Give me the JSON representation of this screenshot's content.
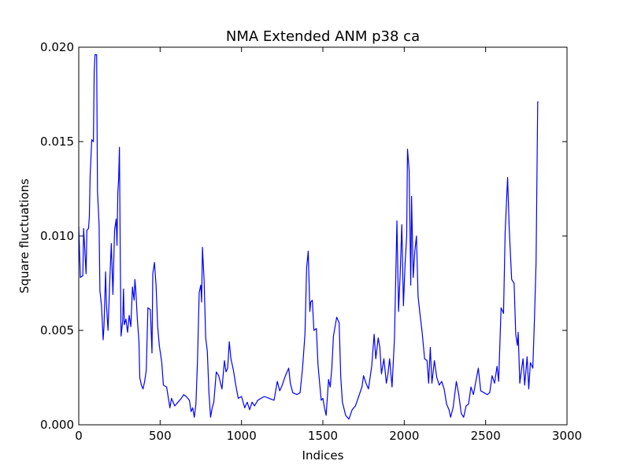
{
  "chart_data": {
    "type": "line",
    "title": "NMA Extended ANM p38 ca",
    "xlabel": "Indices",
    "ylabel": "Square fluctuations",
    "xlim": [
      0,
      3000
    ],
    "xticks": [
      0,
      500,
      1000,
      1500,
      2000,
      2500,
      3000
    ],
    "ylim": [
      0,
      0.02
    ],
    "yticks": [
      {
        "value": 0,
        "label": "0.000"
      },
      {
        "value": 0.005,
        "label": "0.005"
      },
      {
        "value": 0.01,
        "label": "0.010"
      },
      {
        "value": 0.015,
        "label": "0.015"
      },
      {
        "value": 0.02,
        "label": "0.020"
      }
    ],
    "grid": false,
    "x": [
      0,
      10,
      25,
      30,
      45,
      50,
      60,
      65,
      70,
      80,
      90,
      95,
      100,
      110,
      115,
      125,
      130,
      140,
      150,
      155,
      165,
      170,
      180,
      190,
      200,
      210,
      220,
      230,
      235,
      240,
      245,
      250,
      255,
      260,
      270,
      275,
      280,
      290,
      300,
      310,
      320,
      330,
      340,
      345,
      350,
      360,
      370,
      375,
      385,
      395,
      405,
      415,
      425,
      440,
      450,
      455,
      465,
      475,
      485,
      495,
      510,
      520,
      540,
      560,
      570,
      590,
      610,
      630,
      645,
      660,
      680,
      690,
      700,
      710,
      720,
      730,
      740,
      750,
      755,
      760,
      770,
      780,
      790,
      800,
      810,
      820,
      830,
      845,
      860,
      880,
      895,
      905,
      915,
      925,
      935,
      950,
      965,
      980,
      1000,
      1020,
      1035,
      1050,
      1065,
      1080,
      1100,
      1120,
      1140,
      1170,
      1200,
      1220,
      1235,
      1250,
      1270,
      1290,
      1300,
      1315,
      1340,
      1360,
      1375,
      1390,
      1400,
      1410,
      1420,
      1425,
      1435,
      1445,
      1460,
      1470,
      1480,
      1490,
      1500,
      1510,
      1520,
      1535,
      1545,
      1555,
      1565,
      1575,
      1585,
      1600,
      1610,
      1620,
      1640,
      1660,
      1680,
      1700,
      1720,
      1740,
      1750,
      1765,
      1780,
      1800,
      1815,
      1825,
      1840,
      1850,
      1860,
      1875,
      1890,
      1900,
      1910,
      1925,
      1940,
      1955,
      1965,
      1975,
      1985,
      1995,
      2005,
      2015,
      2020,
      2030,
      2040,
      2045,
      2055,
      2065,
      2075,
      2085,
      2095,
      2110,
      2125,
      2140,
      2150,
      2160,
      2170,
      2185,
      2200,
      2215,
      2230,
      2245,
      2260,
      2275,
      2285,
      2300,
      2310,
      2320,
      2335,
      2350,
      2365,
      2380,
      2395,
      2410,
      2425,
      2440,
      2455,
      2470,
      2490,
      2510,
      2525,
      2540,
      2555,
      2570,
      2580,
      2595,
      2610,
      2620,
      2635,
      2645,
      2660,
      2675,
      2685,
      2695,
      2700,
      2710,
      2720,
      2730,
      2740,
      2755,
      2765,
      2775,
      2790,
      2800,
      2810,
      2820,
      2825
    ],
    "series": [
      {
        "color": "#0000ff",
        "values": [
          0.0105,
          0.0078,
          0.0079,
          0.0104,
          0.008,
          0.0103,
          0.0104,
          0.011,
          0.0132,
          0.0151,
          0.015,
          0.0187,
          0.0196,
          0.0196,
          0.0124,
          0.0106,
          0.0071,
          0.0063,
          0.0045,
          0.0052,
          0.0081,
          0.0064,
          0.005,
          0.0075,
          0.0096,
          0.0069,
          0.0103,
          0.0109,
          0.0095,
          0.0123,
          0.013,
          0.0147,
          0.009,
          0.0047,
          0.0055,
          0.0072,
          0.0053,
          0.0056,
          0.0049,
          0.0058,
          0.0052,
          0.0073,
          0.0066,
          0.0077,
          0.0072,
          0.0056,
          0.0044,
          0.0025,
          0.0021,
          0.0019,
          0.0023,
          0.0029,
          0.0062,
          0.0061,
          0.0038,
          0.008,
          0.0086,
          0.0074,
          0.0052,
          0.0042,
          0.0033,
          0.0021,
          0.002,
          0.0009,
          0.0014,
          0.001,
          0.0012,
          0.0014,
          0.0016,
          0.0015,
          0.0013,
          0.0007,
          0.0009,
          0.0004,
          0.0011,
          0.0035,
          0.007,
          0.0074,
          0.0065,
          0.0094,
          0.0077,
          0.0046,
          0.0039,
          0.0017,
          0.0004,
          0.0009,
          0.0012,
          0.0028,
          0.0026,
          0.0019,
          0.0034,
          0.0028,
          0.003,
          0.0044,
          0.0035,
          0.0029,
          0.0021,
          0.0014,
          0.0015,
          0.0009,
          0.0012,
          0.0008,
          0.0012,
          0.001,
          0.0013,
          0.0014,
          0.0015,
          0.0014,
          0.0013,
          0.0023,
          0.0018,
          0.0021,
          0.0026,
          0.003,
          0.0022,
          0.0017,
          0.0016,
          0.0017,
          0.003,
          0.0048,
          0.0083,
          0.0092,
          0.006,
          0.0065,
          0.0066,
          0.005,
          0.0051,
          0.0032,
          0.0022,
          0.0013,
          0.0014,
          0.0009,
          0.0005,
          0.0024,
          0.002,
          0.003,
          0.0047,
          0.0052,
          0.0057,
          0.0054,
          0.0025,
          0.0012,
          0.0005,
          0.0003,
          0.0008,
          0.001,
          0.0015,
          0.002,
          0.0026,
          0.0022,
          0.0019,
          0.0031,
          0.0048,
          0.0035,
          0.0046,
          0.0041,
          0.0027,
          0.0035,
          0.0022,
          0.0027,
          0.0035,
          0.002,
          0.0046,
          0.0108,
          0.006,
          0.008,
          0.0106,
          0.0063,
          0.0085,
          0.01,
          0.0146,
          0.0135,
          0.0074,
          0.0121,
          0.0078,
          0.0092,
          0.01,
          0.0068,
          0.006,
          0.0049,
          0.0035,
          0.0034,
          0.0022,
          0.0041,
          0.0022,
          0.0034,
          0.0025,
          0.0021,
          0.0023,
          0.0019,
          0.0011,
          0.0008,
          0.0004,
          0.0009,
          0.0016,
          0.0023,
          0.0016,
          0.0006,
          0.0004,
          0.001,
          0.0011,
          0.002,
          0.0016,
          0.0023,
          0.003,
          0.0018,
          0.0017,
          0.0016,
          0.0017,
          0.0026,
          0.0022,
          0.0031,
          0.0023,
          0.0062,
          0.0059,
          0.0102,
          0.0131,
          0.0104,
          0.0077,
          0.0075,
          0.0048,
          0.0042,
          0.0049,
          0.0022,
          0.0029,
          0.0035,
          0.0021,
          0.0036,
          0.0019,
          0.0033,
          0.003,
          0.0056,
          0.0086,
          0.0171,
          0.0171
        ]
      }
    ]
  }
}
